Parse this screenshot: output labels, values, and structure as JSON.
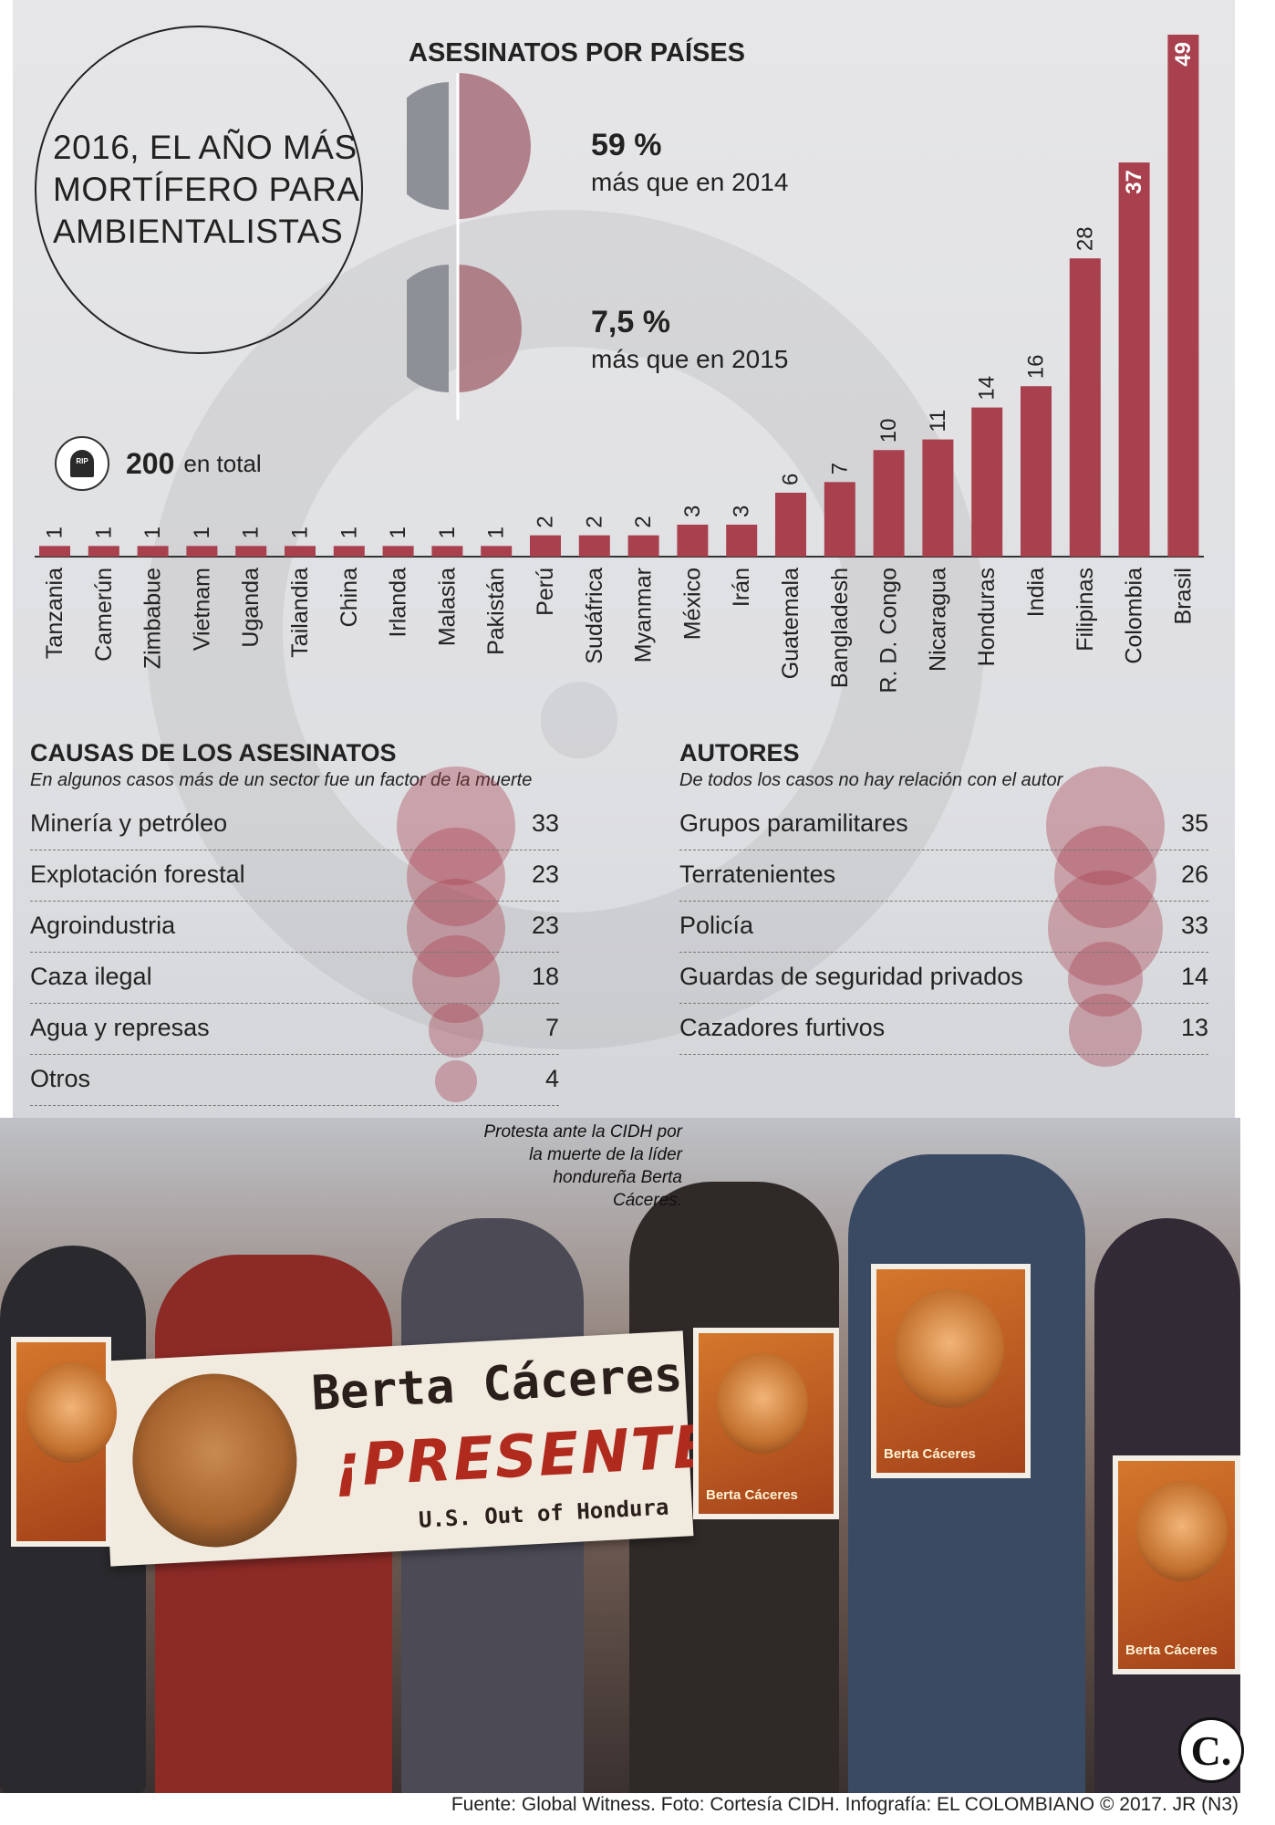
{
  "header": {
    "title": "2016, EL AÑO MÁS\nMORTÍFERO PARA\nAMBIENTALISTAS",
    "chart_title": "ASESINATOS POR PAÍSES"
  },
  "stats": [
    {
      "value": "59 %",
      "text": "más que en 2014"
    },
    {
      "value": "7,5 %",
      "text": "más que en 2015"
    }
  ],
  "total": {
    "icon": "tombstone-icon",
    "icon_text": "RIP",
    "value": "200",
    "text": "en total"
  },
  "chart_data": {
    "type": "bar",
    "title": "ASESINATOS POR PAÍSES",
    "categories": [
      "Tanzania",
      "Camerún",
      "Zimbabue",
      "Vietnam",
      "Uganda",
      "Tailandia",
      "China",
      "Irlanda",
      "Malasia",
      "Pakistán",
      "Perú",
      "Sudáfrica",
      "Myanmar",
      "México",
      "Irán",
      "Guatemala",
      "Bangladesh",
      "R. D. Congo",
      "Nicaragua",
      "Honduras",
      "India",
      "Filipinas",
      "Colombia",
      "Brasil"
    ],
    "values": [
      1,
      1,
      1,
      1,
      1,
      1,
      1,
      1,
      1,
      1,
      2,
      2,
      2,
      3,
      3,
      6,
      7,
      10,
      11,
      14,
      16,
      28,
      37,
      49
    ],
    "ylim": [
      0,
      49
    ],
    "grid": false,
    "color": "#a8404e"
  },
  "causes": {
    "title": "CAUSAS DE LOS ASESINATOS",
    "subtitle": "En algunos casos más de un sector fue un factor de la muerte",
    "items": [
      {
        "label": "Minería y petróleo",
        "value": "33"
      },
      {
        "label": "Explotación forestal",
        "value": "23"
      },
      {
        "label": "Agroindustria",
        "value": "23"
      },
      {
        "label": "Caza ilegal",
        "value": "18"
      },
      {
        "label": "Agua y represas",
        "value": "7"
      },
      {
        "label": "Otros",
        "value": "4"
      }
    ]
  },
  "authors": {
    "title": "AUTORES",
    "subtitle": "De todos los casos no hay relación con el autor",
    "items": [
      {
        "label": "Grupos paramilitares",
        "value": "35"
      },
      {
        "label": "Terratenientes",
        "value": "26"
      },
      {
        "label": "Policía",
        "value": "33"
      },
      {
        "label": "Guardas de seguridad privados",
        "value": "14"
      },
      {
        "label": "Cazadores furtivos",
        "value": "13"
      }
    ]
  },
  "photo": {
    "caption": "Protesta ante la CIDH por la muerte de la líder hondureña Berta Cáceres.",
    "banner_line1": "Berta Cáceres",
    "banner_line2": "¡PRESENTE!",
    "banner_line3": "U.S. Out of Hondura",
    "poster_text": "Berta Cáceres"
  },
  "logo": "C.",
  "footer": "Fuente: Global Witness. Foto: Cortesía CIDH. Infografía: EL COLOMBIANO © 2017. JR (N3)"
}
